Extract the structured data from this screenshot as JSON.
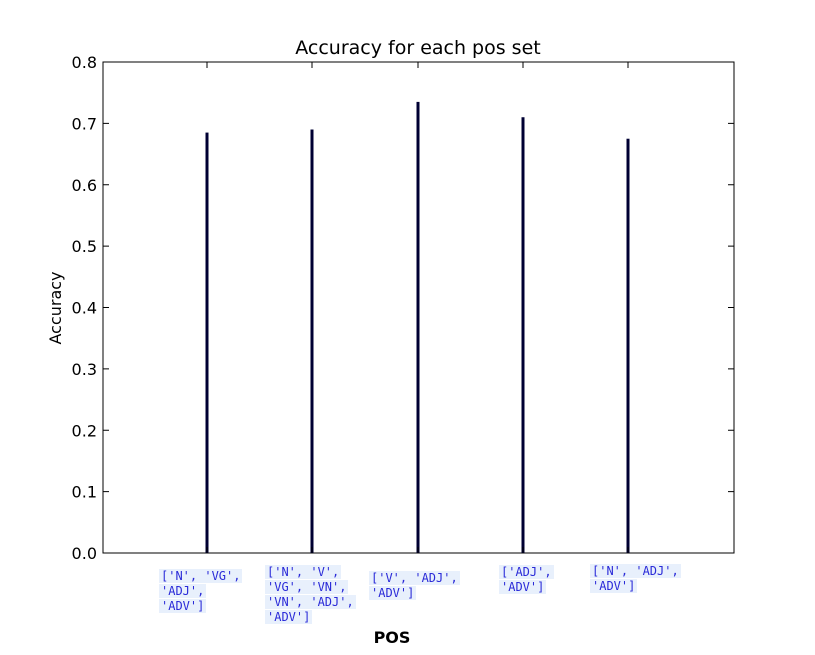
{
  "chart_data": {
    "type": "bar",
    "title": "Accuracy for each pos set",
    "xlabel": "POS",
    "ylabel": "Accuracy",
    "ylim": [
      0,
      0.8
    ],
    "yticks": [
      "0.0",
      "0.1",
      "0.2",
      "0.3",
      "0.4",
      "0.5",
      "0.6",
      "0.7",
      "0.8"
    ],
    "categories": [
      [
        "['N', 'VG',",
        "'ADJ',",
        "'ADV']"
      ],
      [
        "['N', 'V',",
        "'VG', 'VN',",
        "'VN', 'ADJ',",
        "'ADV']"
      ],
      [
        "['V', 'ADJ',",
        "'ADV']"
      ],
      [
        "['ADJ',",
        "'ADV']"
      ],
      [
        "['N', 'ADJ',",
        "'ADV']"
      ]
    ],
    "values": [
      0.685,
      0.69,
      0.735,
      0.71,
      0.675
    ],
    "bar_color": "#000033",
    "label_bg_color": "#e8f0fc",
    "label_text_color": "#2a2ad8"
  }
}
